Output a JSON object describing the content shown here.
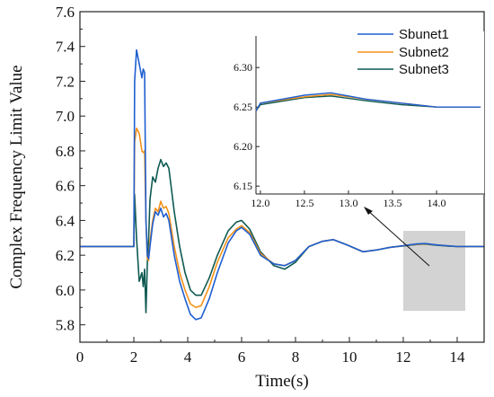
{
  "chart_data": {
    "type": "line",
    "xlabel": "Time(s)",
    "ylabel": "Complex Frequency Limit Value",
    "xlim": [
      0,
      15
    ],
    "ylim": [
      5.7,
      7.6
    ],
    "xticks": [
      "0",
      "2",
      "4",
      "6",
      "8",
      "10",
      "12",
      "14"
    ],
    "yticks": [
      "5.8",
      "6.0",
      "6.2",
      "6.4",
      "6.6",
      "6.8",
      "7.0",
      "7.2",
      "7.4",
      "7.6"
    ],
    "legend_position": "top-right",
    "grid": false,
    "series": [
      {
        "name": "Sbunet1",
        "color": "#1f5fd1",
        "x": [
          0,
          2.0,
          2.03,
          2.1,
          2.2,
          2.3,
          2.35,
          2.4,
          2.45,
          2.5,
          2.55,
          2.6,
          2.7,
          2.8,
          2.9,
          3.0,
          3.1,
          3.2,
          3.3,
          3.5,
          3.7,
          3.9,
          4.1,
          4.3,
          4.5,
          4.8,
          5.1,
          5.5,
          5.8,
          6.0,
          6.3,
          6.7,
          7.2,
          7.6,
          8.0,
          8.5,
          9.0,
          9.4,
          9.9,
          10.5,
          11.0,
          11.5,
          12.0,
          12.5,
          12.8,
          13.2,
          13.6,
          14.0,
          14.5,
          15.0
        ],
        "values": [
          6.25,
          6.25,
          7.2,
          7.38,
          7.3,
          7.22,
          7.27,
          7.25,
          6.4,
          6.2,
          6.18,
          6.25,
          6.38,
          6.45,
          6.43,
          6.47,
          6.42,
          6.44,
          6.4,
          6.2,
          6.05,
          5.95,
          5.86,
          5.83,
          5.84,
          5.95,
          6.1,
          6.27,
          6.34,
          6.36,
          6.32,
          6.2,
          6.15,
          6.14,
          6.17,
          6.25,
          6.28,
          6.29,
          6.26,
          6.22,
          6.23,
          6.245,
          6.255,
          6.265,
          6.268,
          6.26,
          6.255,
          6.25,
          6.25,
          6.25
        ]
      },
      {
        "name": "Subnet2",
        "color": "#f39218",
        "x": [
          0,
          2.0,
          2.03,
          2.1,
          2.2,
          2.3,
          2.35,
          2.4,
          2.45,
          2.5,
          2.55,
          2.6,
          2.7,
          2.8,
          2.9,
          3.0,
          3.1,
          3.2,
          3.3,
          3.5,
          3.7,
          3.9,
          4.1,
          4.3,
          4.5,
          4.8,
          5.1,
          5.5,
          5.8,
          6.0,
          6.3,
          6.7,
          7.2,
          7.6,
          8.0,
          8.5,
          9.0,
          9.4,
          9.9,
          10.5,
          11.0,
          11.5,
          12.0,
          12.5,
          12.8,
          13.2,
          13.6,
          14.0,
          14.5,
          15.0
        ],
        "values": [
          6.25,
          6.25,
          6.85,
          6.93,
          6.9,
          6.8,
          6.79,
          6.8,
          6.4,
          6.18,
          6.17,
          6.28,
          6.4,
          6.47,
          6.45,
          6.51,
          6.47,
          6.48,
          6.44,
          6.25,
          6.1,
          6.0,
          5.92,
          5.9,
          5.91,
          6.02,
          6.16,
          6.3,
          6.35,
          6.37,
          6.33,
          6.21,
          6.15,
          6.14,
          6.17,
          6.25,
          6.28,
          6.29,
          6.26,
          6.22,
          6.23,
          6.245,
          6.255,
          6.263,
          6.266,
          6.26,
          6.255,
          6.25,
          6.25,
          6.25
        ]
      },
      {
        "name": "Subnet3",
        "color": "#0f5a52",
        "x": [
          0,
          2.0,
          2.03,
          2.1,
          2.2,
          2.3,
          2.35,
          2.4,
          2.45,
          2.5,
          2.55,
          2.6,
          2.7,
          2.8,
          2.9,
          3.0,
          3.1,
          3.2,
          3.3,
          3.5,
          3.7,
          3.9,
          4.1,
          4.3,
          4.5,
          4.8,
          5.1,
          5.5,
          5.8,
          6.0,
          6.3,
          6.7,
          7.2,
          7.6,
          8.0,
          8.5,
          9.0,
          9.4,
          9.9,
          10.5,
          11.0,
          11.5,
          12.0,
          12.5,
          12.8,
          13.2,
          13.6,
          14.0,
          14.5,
          15.0
        ],
        "values": [
          6.25,
          6.25,
          6.55,
          6.3,
          6.05,
          6.1,
          6.02,
          6.12,
          5.87,
          6.15,
          6.3,
          6.52,
          6.65,
          6.62,
          6.7,
          6.75,
          6.71,
          6.73,
          6.7,
          6.45,
          6.25,
          6.1,
          6.0,
          5.97,
          5.97,
          6.07,
          6.2,
          6.34,
          6.39,
          6.4,
          6.35,
          6.22,
          6.14,
          6.12,
          6.16,
          6.25,
          6.28,
          6.29,
          6.26,
          6.22,
          6.23,
          6.245,
          6.253,
          6.262,
          6.264,
          6.258,
          6.253,
          6.25,
          6.25,
          6.25
        ]
      }
    ],
    "highlight_region": {
      "x": [
        12.0,
        14.3
      ],
      "y": [
        5.88,
        6.34
      ],
      "color": "#d3d3d3"
    },
    "inset": {
      "xlim": [
        11.95,
        14.55
      ],
      "ylim": [
        6.14,
        6.34
      ],
      "xticks": [
        "12.0",
        "12.5",
        "13.0",
        "13.5",
        "14.0"
      ],
      "yticks": [
        "6.15",
        "6.20",
        "6.25",
        "6.30"
      ]
    }
  }
}
